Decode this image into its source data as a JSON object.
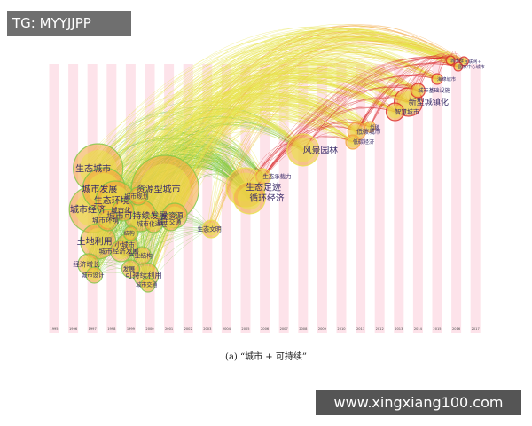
{
  "overlays": {
    "tag": "TG: MYYJJPP",
    "site": "www.xingxiang100.com"
  },
  "caption": "(a) “城市 + 可持续”",
  "colors": {
    "stripe": "#fde3ea",
    "green": "#7dc843",
    "yellow": "#e7e34a",
    "orange": "#f3a43b",
    "red": "#d9282c"
  },
  "chart_data": {
    "type": "timeline",
    "years": [
      "1995",
      "1996",
      "1997",
      "1998",
      "1999",
      "2000",
      "2001",
      "2002",
      "2003",
      "2004",
      "2005",
      "2006",
      "2007",
      "2008",
      "2009",
      "2010",
      "2011",
      "2012",
      "2013",
      "2014",
      "2015",
      "2016",
      "2017"
    ],
    "nodes": [
      {
        "label": "生态城市",
        "year": 1997.3,
        "row": 190,
        "r": 28
      },
      {
        "label": "城市发展",
        "year": 1997.6,
        "row": 213,
        "r": 24
      },
      {
        "label": "资源型城市",
        "year": 2000.8,
        "row": 213,
        "r": 38
      },
      {
        "label": "城市规划",
        "year": 1999.4,
        "row": 221,
        "r": 10
      },
      {
        "label": "生态环境",
        "year": 1998.2,
        "row": 226,
        "r": 22
      },
      {
        "label": "城市经济",
        "year": 1997.0,
        "row": 236,
        "r": 26
      },
      {
        "label": "城市化",
        "year": 1998.6,
        "row": 237,
        "r": 12
      },
      {
        "label": "城市可持续发展",
        "year": 1999.5,
        "row": 243,
        "r": 18
      },
      {
        "label": "水资源",
        "year": 2001.3,
        "row": 243,
        "r": 14
      },
      {
        "label": "城市环境",
        "year": 1997.8,
        "row": 248,
        "r": 12
      },
      {
        "label": "城市化进程",
        "year": 2000.2,
        "row": 252,
        "r": 10
      },
      {
        "label": "城市交通",
        "year": 2001.1,
        "row": 250,
        "r": 10
      },
      {
        "label": "生态足迹",
        "year": 2005.0,
        "row": 211,
        "r": 22
      },
      {
        "label": "循环经济",
        "year": 2005.2,
        "row": 223,
        "r": 18
      },
      {
        "label": "生态承载力",
        "year": 2005.9,
        "row": 199,
        "r": 9
      },
      {
        "label": "生态文明",
        "year": 2003.2,
        "row": 258,
        "r": 10
      },
      {
        "label": "土地利用",
        "year": 1997.3,
        "row": 272,
        "r": 20
      },
      {
        "label": "小城市",
        "year": 1998.8,
        "row": 276,
        "r": 12
      },
      {
        "label": "城市经济发展",
        "year": 1998.5,
        "row": 283,
        "r": 12
      },
      {
        "label": "结构",
        "year": 1999.0,
        "row": 263,
        "r": 8
      },
      {
        "label": "产业结构",
        "year": 1999.6,
        "row": 288,
        "r": 10
      },
      {
        "label": "经济增长",
        "year": 1996.8,
        "row": 298,
        "r": 12
      },
      {
        "label": "城市设计",
        "year": 1997.1,
        "row": 310,
        "r": 9
      },
      {
        "label": "发展",
        "year": 1999.0,
        "row": 303,
        "r": 10
      },
      {
        "label": "可持续利用",
        "year": 1999.8,
        "row": 310,
        "r": 14
      },
      {
        "label": "城市交通",
        "year": 1999.9,
        "row": 321,
        "r": 8
      },
      {
        "label": "风景园林",
        "year": 2008.0,
        "row": 169,
        "r": 18
      },
      {
        "label": "低碳城市",
        "year": 2010.8,
        "row": 148,
        "r": 10
      },
      {
        "label": "低碳经济",
        "year": 2010.6,
        "row": 160,
        "r": 8
      },
      {
        "label": "低碳",
        "year": 2011.5,
        "row": 143,
        "r": 6
      },
      {
        "label": "智慧城市",
        "year": 2012.8,
        "row": 126,
        "r": 10
      },
      {
        "label": "新型城镇化",
        "year": 2013.5,
        "row": 115,
        "r": 16
      },
      {
        "label": "城市基础设施",
        "year": 2014.0,
        "row": 102,
        "r": 8
      },
      {
        "label": "海绵城市",
        "year": 2015.0,
        "row": 89,
        "r": 6
      },
      {
        "label": "互联网+",
        "year": 2016.4,
        "row": 69,
        "r": 5
      },
      {
        "label": "城市群",
        "year": 2015.7,
        "row": 68,
        "r": 5
      },
      {
        "label": "国家中心城市",
        "year": 2016.1,
        "row": 75,
        "r": 5
      }
    ]
  }
}
